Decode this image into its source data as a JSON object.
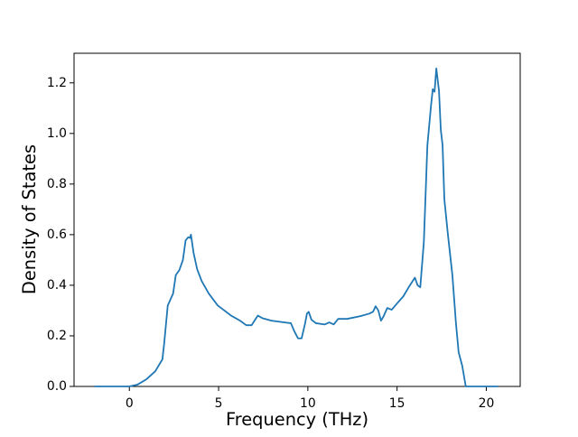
{
  "chart_data": {
    "type": "line",
    "xlabel": "Frequency (THz)",
    "ylabel": "Density of States",
    "x": [
      -1.95,
      0,
      0.45,
      0.95,
      1.45,
      1.85,
      1.95,
      2.15,
      2.45,
      2.6,
      2.8,
      3.0,
      3.15,
      3.3,
      3.4,
      3.45,
      3.6,
      3.8,
      4.05,
      4.45,
      4.95,
      5.7,
      6.2,
      6.55,
      6.85,
      7.05,
      7.2,
      7.45,
      7.95,
      8.7,
      9.05,
      9.25,
      9.45,
      9.65,
      9.85,
      9.95,
      10.05,
      10.2,
      10.45,
      10.95,
      11.2,
      11.45,
      11.7,
      12.2,
      12.95,
      13.45,
      13.65,
      13.8,
      13.95,
      14.1,
      14.25,
      14.45,
      14.7,
      15.0,
      15.35,
      15.65,
      16.0,
      16.15,
      16.3,
      16.5,
      16.7,
      16.9,
      17.0,
      17.1,
      17.2,
      17.35,
      17.45,
      17.55,
      17.65,
      17.85,
      18.1,
      18.3,
      18.45,
      18.65,
      18.85,
      20.65
    ],
    "values": [
      0,
      0,
      0.007,
      0.028,
      0.06,
      0.107,
      0.17,
      0.32,
      0.367,
      0.44,
      0.46,
      0.5,
      0.577,
      0.59,
      0.587,
      0.6,
      0.527,
      0.463,
      0.417,
      0.367,
      0.32,
      0.28,
      0.26,
      0.242,
      0.242,
      0.264,
      0.28,
      0.27,
      0.26,
      0.253,
      0.25,
      0.217,
      0.19,
      0.19,
      0.25,
      0.288,
      0.295,
      0.264,
      0.25,
      0.245,
      0.253,
      0.245,
      0.267,
      0.267,
      0.278,
      0.288,
      0.295,
      0.317,
      0.3,
      0.26,
      0.278,
      0.31,
      0.303,
      0.328,
      0.356,
      0.392,
      0.43,
      0.4,
      0.392,
      0.57,
      0.954,
      1.108,
      1.175,
      1.165,
      1.257,
      1.168,
      1.015,
      0.954,
      0.74,
      0.6,
      0.44,
      0.25,
      0.135,
      0.082,
      0,
      0
    ],
    "color": "#1f77b4",
    "xlim": [
      -3.1,
      21.9
    ],
    "xticks": [
      0,
      5,
      10,
      15,
      20
    ],
    "ylim": [
      0,
      1.317
    ],
    "yticks": [
      {
        "value": 0,
        "label": "0.0"
      },
      0.2,
      0.4,
      0.6,
      0.8,
      {
        "value": 1,
        "label": "1.0"
      },
      1.2
    ]
  }
}
